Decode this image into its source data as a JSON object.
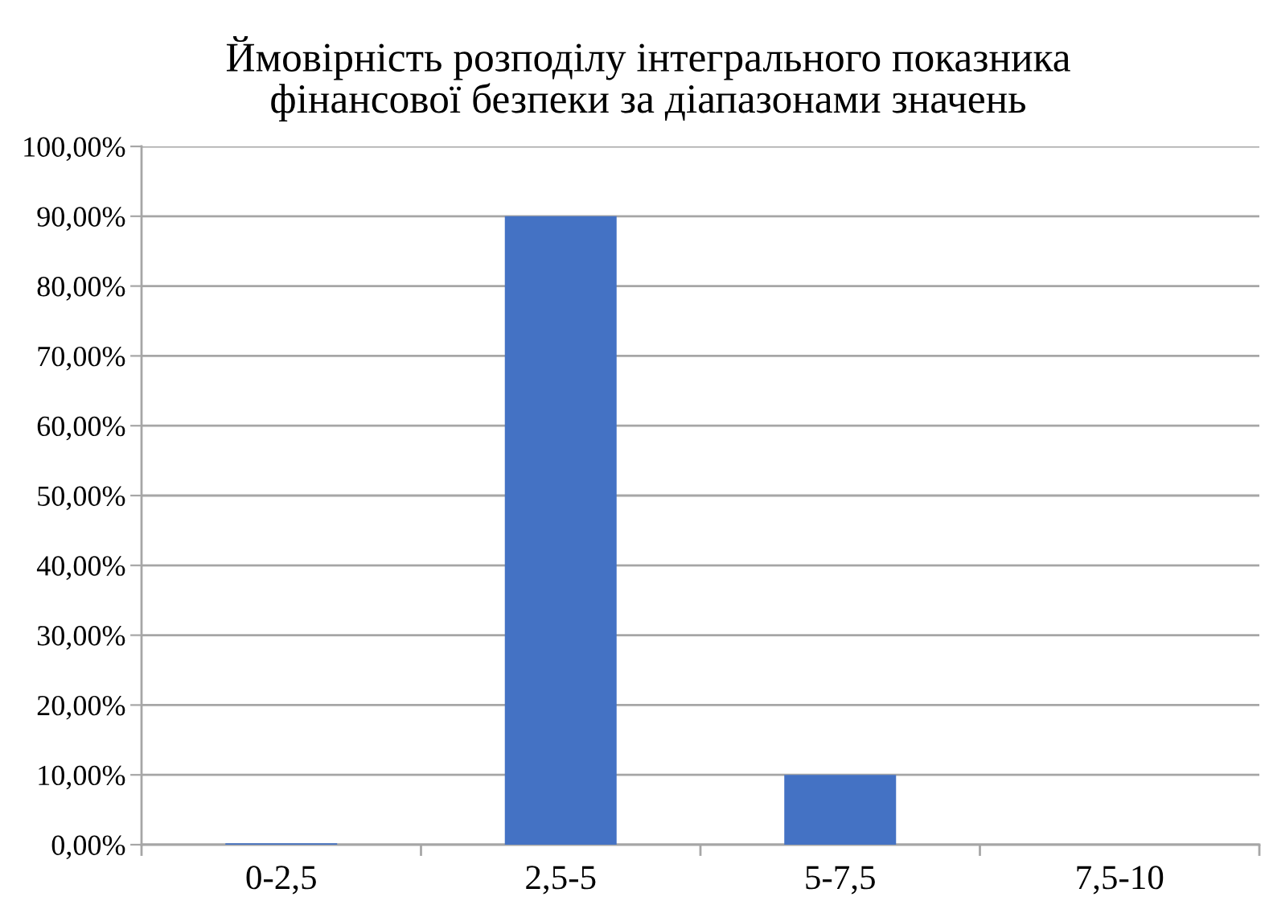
{
  "chart_data": {
    "type": "bar",
    "title": "Ймовірність розподілу інтегрального показника\nфінансової безпеки за діапазонами значень",
    "categories": [
      "0-2,5",
      "2,5-5",
      "5-7,5",
      "7,5-10"
    ],
    "values": [
      0.2,
      90,
      10,
      0
    ],
    "color": "#4472c4",
    "ylim": [
      0,
      100
    ],
    "yticks": [
      {
        "value": 0,
        "label": "0,00%"
      },
      {
        "value": 10,
        "label": "10,00%"
      },
      {
        "value": 20,
        "label": "20,00%"
      },
      {
        "value": 30,
        "label": "30,00%"
      },
      {
        "value": 40,
        "label": "40,00%"
      },
      {
        "value": 50,
        "label": "50,00%"
      },
      {
        "value": 60,
        "label": "60,00%"
      },
      {
        "value": 70,
        "label": "70,00%"
      },
      {
        "value": 80,
        "label": "80,00%"
      },
      {
        "value": 90,
        "label": "90,00%"
      },
      {
        "value": 100,
        "label": "100,00%"
      }
    ],
    "grid": "y",
    "legend": false
  }
}
